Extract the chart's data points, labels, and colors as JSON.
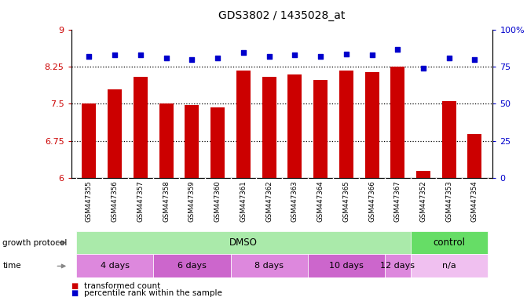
{
  "title": "GDS3802 / 1435028_at",
  "samples": [
    "GSM447355",
    "GSM447356",
    "GSM447357",
    "GSM447358",
    "GSM447359",
    "GSM447360",
    "GSM447361",
    "GSM447362",
    "GSM447363",
    "GSM447364",
    "GSM447365",
    "GSM447366",
    "GSM447367",
    "GSM447352",
    "GSM447353",
    "GSM447354"
  ],
  "bar_values": [
    7.5,
    7.8,
    8.05,
    7.5,
    7.47,
    7.43,
    8.18,
    8.05,
    8.1,
    7.98,
    8.17,
    8.14,
    8.25,
    6.13,
    7.55,
    6.88
  ],
  "percentile_values": [
    82,
    83,
    83,
    81,
    80,
    81,
    85,
    82,
    83,
    82,
    84,
    83,
    87,
    74,
    81,
    80
  ],
  "bar_color": "#cc0000",
  "dot_color": "#0000cc",
  "ylim_left": [
    6.0,
    9.0
  ],
  "ylim_right": [
    0,
    100
  ],
  "yticks_left": [
    6.0,
    6.75,
    7.5,
    8.25,
    9.0
  ],
  "ytick_labels_left": [
    "6",
    "6.75",
    "7.5",
    "8.25",
    "9"
  ],
  "yticks_right": [
    0,
    25,
    50,
    75,
    100
  ],
  "ytick_labels_right": [
    "0",
    "25",
    "50",
    "75",
    "100%"
  ],
  "dotted_lines": [
    6.75,
    7.5,
    8.25
  ],
  "dmso_color": "#aaeaaa",
  "control_color": "#66dd66",
  "time_color_alt": "#dd88dd",
  "time_color_light": "#eeaaee",
  "na_color": "#f0c0f0",
  "tick_label_color_left": "#cc0000",
  "tick_label_color_right": "#0000cc",
  "bg_color": "#ffffff",
  "label_gray": "#888888",
  "time_groups": [
    {
      "label": "4 days",
      "start": 0,
      "end": 2
    },
    {
      "label": "6 days",
      "start": 3,
      "end": 5
    },
    {
      "label": "8 days",
      "start": 6,
      "end": 8
    },
    {
      "label": "10 days",
      "start": 9,
      "end": 11
    },
    {
      "label": "12 days",
      "start": 12,
      "end": 12
    },
    {
      "label": "n/a",
      "start": 13,
      "end": 15
    }
  ]
}
